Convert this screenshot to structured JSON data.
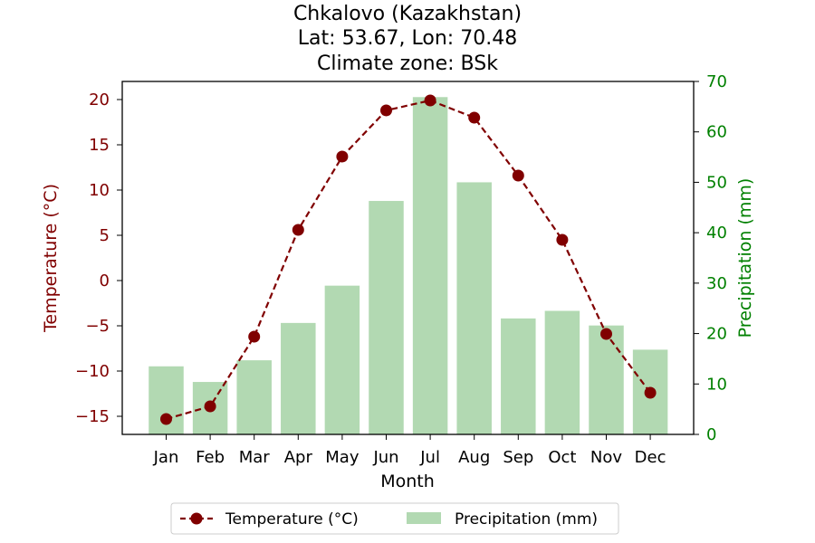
{
  "chart_data": {
    "type": "bar+line",
    "title_lines": [
      "Chkalovo (Kazakhstan)",
      "Lat: 53.67, Lon: 70.48",
      "Climate zone: BSk"
    ],
    "xlabel": "Month",
    "categories": [
      "Jan",
      "Feb",
      "Mar",
      "Apr",
      "May",
      "Jun",
      "Jul",
      "Aug",
      "Sep",
      "Oct",
      "Nov",
      "Dec"
    ],
    "temperature": {
      "name": "Temperature (°C)",
      "axis_label": "Temperature (°C)",
      "color": "#800000",
      "ylim": [
        -17,
        22
      ],
      "ticks": [
        -15,
        -10,
        -5,
        0,
        5,
        10,
        15,
        20
      ],
      "tick_labels": [
        "−15",
        "−10",
        "−5",
        "0",
        "5",
        "10",
        "15",
        "20"
      ],
      "values": [
        -15.3,
        -13.9,
        -6.2,
        5.6,
        13.7,
        18.8,
        19.9,
        18.0,
        11.6,
        4.5,
        -5.9,
        -12.4
      ]
    },
    "precipitation": {
      "name": "Precipitation (mm)",
      "axis_label": "Precipitation (mm)",
      "color": "#7fbf7f",
      "axis_color": "#008000",
      "ylim": [
        0,
        70
      ],
      "ticks": [
        0,
        10,
        20,
        30,
        40,
        50,
        60,
        70
      ],
      "tick_labels": [
        "0",
        "10",
        "20",
        "30",
        "40",
        "50",
        "60",
        "70"
      ],
      "values": [
        13.5,
        10.4,
        14.7,
        22.1,
        29.5,
        46.3,
        66.9,
        50.0,
        23.0,
        24.5,
        21.6,
        16.8
      ]
    },
    "legend_position": "bottom-center"
  }
}
